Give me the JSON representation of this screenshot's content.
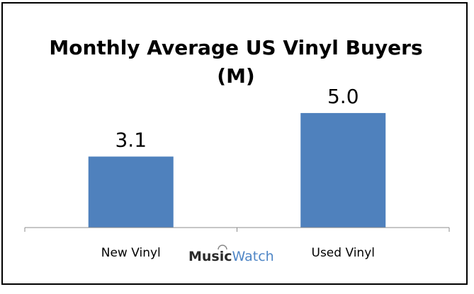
{
  "chart_data": {
    "type": "bar",
    "title": "Monthly Average US Vinyl  Buyers",
    "title_line2": "(M)",
    "categories": [
      "New Vinyl",
      "Used Vinyl"
    ],
    "values": [
      3.1,
      5.0
    ],
    "data_labels": [
      "3.1",
      "5.0"
    ],
    "ylim": [
      0,
      5.8
    ],
    "bar_color": "#4f81bd",
    "grid": false,
    "xlabel": "",
    "ylabel": ""
  },
  "logo": {
    "part1": "Music",
    "part2": "Watch"
  }
}
